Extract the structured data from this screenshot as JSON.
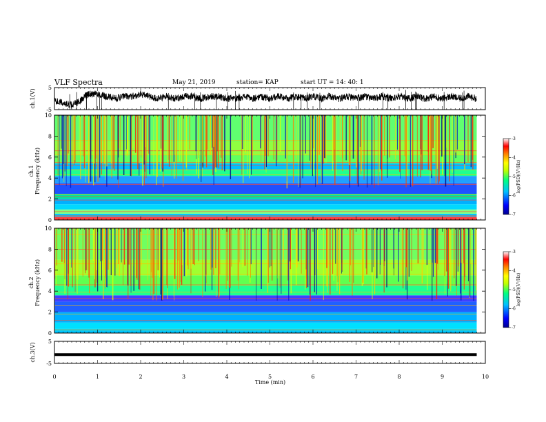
{
  "header": {
    "title": "VLF Spectra",
    "date": "May 21, 2019",
    "station": "station= KAP",
    "start": "start  UT =   14: 40: 1"
  },
  "colorbar": {
    "label": "log(PSD)(V²/Hz)",
    "ticks": [
      "-3",
      "-4",
      "-5",
      "-6",
      "-7"
    ],
    "colors": [
      "#000090",
      "#0000ff",
      "#00c0ff",
      "#00ff80",
      "#c0ff00",
      "#ffff00",
      "#ff8000",
      "#ff0000",
      "#ffffff"
    ]
  },
  "x_axis": {
    "label": "Time  (min)",
    "ticks": [
      "0",
      "1",
      "2",
      "3",
      "4",
      "5",
      "6",
      "7",
      "8",
      "9",
      "10"
    ]
  },
  "chart_data": [
    {
      "type": "line",
      "name": "ch1-waveform",
      "ylabel": "ch.1(V)",
      "ylim": [
        -5,
        5
      ],
      "yticks": [
        "5",
        "-5"
      ],
      "xlim": [
        0,
        10
      ],
      "x": [
        0,
        0.2,
        0.4,
        0.6,
        0.7,
        0.8,
        1.0,
        1.2,
        1.4,
        1.6,
        1.8,
        2.0,
        2.2,
        2.4,
        2.6,
        2.8,
        3.0,
        3.2,
        3.4,
        3.6,
        3.8,
        4.0,
        4.2,
        4.4,
        4.6,
        4.8,
        5.0,
        5.2,
        5.4,
        5.6,
        5.8,
        6.0,
        6.2,
        6.4,
        6.6,
        6.8,
        7.0,
        7.2,
        7.4,
        7.6,
        7.8,
        8.0,
        8.2,
        8.4,
        8.6,
        8.8,
        9.0,
        9.2,
        9.4,
        9.6,
        9.8
      ],
      "y": [
        -1,
        -2,
        -3,
        -1,
        1,
        2,
        2,
        1,
        0,
        1,
        1,
        2,
        1,
        0,
        1,
        0,
        1,
        1,
        0,
        1,
        1,
        0,
        0,
        1,
        0,
        1,
        0,
        1,
        0,
        1,
        0,
        1,
        0,
        1,
        0,
        1,
        0,
        1,
        0,
        1,
        0,
        1,
        0,
        1,
        0,
        1,
        0,
        1,
        0,
        1,
        0
      ]
    },
    {
      "type": "heatmap",
      "name": "ch1-spectrogram",
      "channel_label": "ch.1",
      "ylabel": "Frequency  (kHz)",
      "ylim": [
        0,
        10
      ],
      "yticks": [
        "0",
        "2",
        "4",
        "6",
        "8",
        "10"
      ],
      "xlim": [
        0,
        10
      ],
      "clim": [
        -7,
        -3
      ]
    },
    {
      "type": "heatmap",
      "name": "ch2-spectrogram",
      "channel_label": "ch.2",
      "ylabel": "Frequency  (kHz)",
      "ylim": [
        0,
        10
      ],
      "yticks": [
        "0",
        "2",
        "4",
        "6",
        "8",
        "10"
      ],
      "xlim": [
        0,
        10
      ],
      "clim": [
        -7,
        -3
      ]
    },
    {
      "type": "line",
      "name": "ch3-waveform",
      "ylabel": "ch.3(V)",
      "ylim": [
        -5,
        5
      ],
      "yticks": [
        "5",
        "-5"
      ],
      "xlim": [
        0,
        10
      ],
      "x": [
        0,
        9.8
      ],
      "y": [
        -1,
        -1
      ]
    }
  ]
}
